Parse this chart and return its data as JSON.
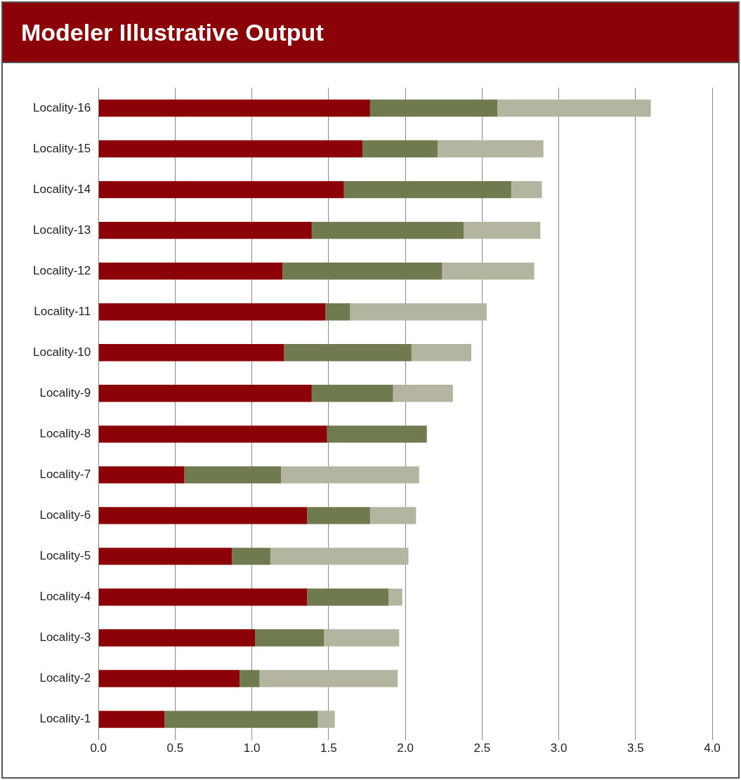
{
  "chart_data": {
    "type": "bar",
    "title": "Modeler Illustrative Output",
    "orientation": "horizontal",
    "stacked": true,
    "grid": "x",
    "categories": [
      "Locality-16",
      "Locality-15",
      "Locality-14",
      "Locality-13",
      "Locality-12",
      "Locality-11",
      "Locality-10",
      "Locality-9",
      "Locality-8",
      "Locality-7",
      "Locality-6",
      "Locality-5",
      "Locality-4",
      "Locality-3",
      "Locality-2",
      "Locality-1"
    ],
    "series": [
      {
        "color": "#8b0306",
        "values": [
          1.77,
          1.72,
          1.6,
          1.39,
          1.2,
          1.48,
          1.21,
          1.39,
          1.49,
          0.56,
          1.36,
          0.87,
          1.36,
          1.02,
          0.92,
          0.43
        ]
      },
      {
        "color": "#6f7a4f",
        "values": [
          0.83,
          0.49,
          1.09,
          0.99,
          1.04,
          0.16,
          0.83,
          0.53,
          0.65,
          0.63,
          0.41,
          0.25,
          0.53,
          0.45,
          0.13,
          1.0
        ]
      },
      {
        "color": "#b3b5a0",
        "values": [
          1.0,
          0.69,
          0.2,
          0.5,
          0.6,
          0.89,
          0.39,
          0.39,
          0,
          0.9,
          0.3,
          0.9,
          0.09,
          0.49,
          0.9,
          0.11
        ]
      }
    ],
    "xlim": [
      0,
      4
    ],
    "xticks": [
      {
        "value": 0,
        "label": "0.0"
      },
      {
        "value": 0.5,
        "label": "0.5"
      },
      {
        "value": 1,
        "label": "1.0"
      },
      {
        "value": 1.5,
        "label": "1.5"
      },
      {
        "value": 2,
        "label": "2.0"
      },
      {
        "value": 2.5,
        "label": "2.5"
      },
      {
        "value": 3,
        "label": "3.0"
      },
      {
        "value": 3.5,
        "label": "3.5"
      },
      {
        "value": 4,
        "label": "4.0"
      }
    ]
  }
}
